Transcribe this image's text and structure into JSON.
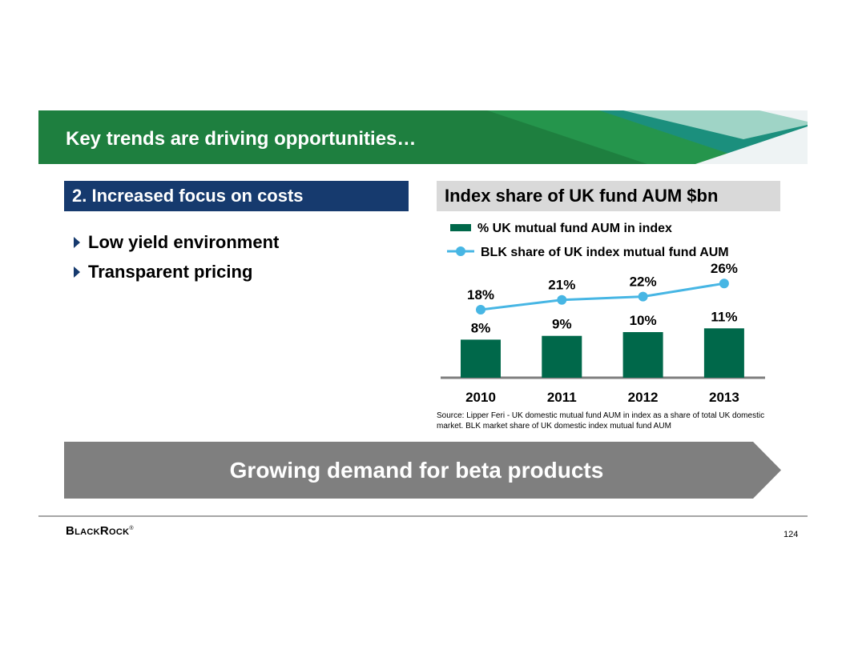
{
  "banner": {
    "title": "Key trends are driving opportunities…"
  },
  "left_section": {
    "header": "2. Increased focus on costs",
    "bullets": [
      "Low yield environment",
      "Transparent pricing"
    ]
  },
  "chart_header": "Index share of UK fund AUM $bn",
  "chart_data": {
    "type": "bar",
    "title": "Index share of UK fund AUM $bn",
    "categories": [
      "2010",
      "2011",
      "2012",
      "2013"
    ],
    "series": [
      {
        "name": "% UK mutual fund AUM in index",
        "type": "bar",
        "values": [
          8,
          9,
          10,
          11
        ],
        "labels": [
          "8%",
          "9%",
          "10%",
          "11%"
        ],
        "color": "#00684a"
      },
      {
        "name": "BLK share of UK index mutual fund AUM",
        "type": "line",
        "values": [
          18,
          21,
          22,
          26
        ],
        "labels": [
          "18%",
          "21%",
          "22%",
          "26%"
        ],
        "color": "#47b6e4"
      }
    ],
    "legend_position": "top",
    "xlabel": "",
    "ylabel": ""
  },
  "source_note": "Source: Lipper Feri - UK domestic mutual fund AUM in index as a share of total UK domestic market. BLK market share of UK domestic index mutual fund AUM",
  "callout": "Growing demand for beta products",
  "footer": {
    "logo": "BlackRock",
    "trademark": "®",
    "page_number": "124"
  },
  "colors": {
    "banner_green": "#1e7f3f",
    "navy": "#163a6e",
    "bar_green": "#00684a",
    "line_blue": "#47b6e4",
    "arrow_gray": "#7f7f7f"
  }
}
